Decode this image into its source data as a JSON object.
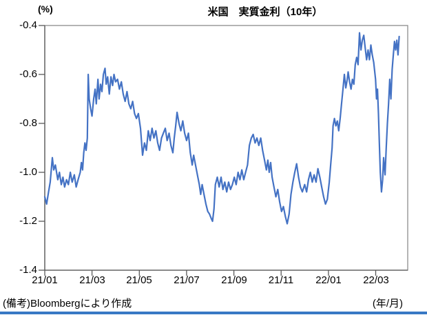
{
  "page": {
    "bottom_bar_color": "#3878C4"
  },
  "chart_data": {
    "type": "line",
    "title": "米国　実質金利（10年）",
    "y_axis_unit": "(%)",
    "x_axis_unit": "(年/月)",
    "source_note": "(備考)Bloombergにより作成",
    "y_tick_labels": [
      "-0.4",
      "-0.6",
      "-0.8",
      "-1.0",
      "-1.2",
      "-1.4"
    ],
    "x_tick_labels": [
      "21/01",
      "21/03",
      "21/05",
      "21/07",
      "21/09",
      "21/11",
      "22/01",
      "22/03"
    ],
    "ylim": [
      -1.4,
      -0.4
    ],
    "xlim_months": [
      0,
      15.36
    ],
    "x_tick_months": [
      0,
      2,
      4,
      6,
      8,
      10,
      12,
      14
    ],
    "grid": false,
    "legend_position": "none",
    "line_color": "#4472C4",
    "series": [
      {
        "name": "米国 実質金利（10年）",
        "x_unit": "months since 2021-01",
        "points": [
          [
            0.0,
            -1.1
          ],
          [
            0.08,
            -1.13
          ],
          [
            0.16,
            -1.08
          ],
          [
            0.23,
            -1.04
          ],
          [
            0.32,
            -0.94
          ],
          [
            0.38,
            -0.99
          ],
          [
            0.45,
            -0.97
          ],
          [
            0.55,
            -1.03
          ],
          [
            0.62,
            -1.0
          ],
          [
            0.7,
            -1.05
          ],
          [
            0.77,
            -1.02
          ],
          [
            0.84,
            -1.06
          ],
          [
            0.92,
            -1.03
          ],
          [
            1.0,
            -1.05
          ],
          [
            1.08,
            -1.0
          ],
          [
            1.16,
            -1.04
          ],
          [
            1.25,
            -1.01
          ],
          [
            1.33,
            -1.06
          ],
          [
            1.41,
            -1.03
          ],
          [
            1.5,
            -1.0
          ],
          [
            1.55,
            -0.96
          ],
          [
            1.6,
            -0.99
          ],
          [
            1.65,
            -0.92
          ],
          [
            1.7,
            -0.88
          ],
          [
            1.75,
            -0.91
          ],
          [
            1.8,
            -0.86
          ],
          [
            1.84,
            -0.6
          ],
          [
            1.88,
            -0.7
          ],
          [
            1.94,
            -0.74
          ],
          [
            2.0,
            -0.77
          ],
          [
            2.07,
            -0.7
          ],
          [
            2.13,
            -0.66
          ],
          [
            2.18,
            -0.72
          ],
          [
            2.25,
            -0.62
          ],
          [
            2.3,
            -0.7
          ],
          [
            2.36,
            -0.64
          ],
          [
            2.42,
            -0.67
          ],
          [
            2.48,
            -0.6
          ],
          [
            2.55,
            -0.575
          ],
          [
            2.6,
            -0.64
          ],
          [
            2.66,
            -0.61
          ],
          [
            2.73,
            -0.68
          ],
          [
            2.8,
            -0.61
          ],
          [
            2.87,
            -0.645
          ],
          [
            2.93,
            -0.6
          ],
          [
            3.0,
            -0.63
          ],
          [
            3.08,
            -0.62
          ],
          [
            3.16,
            -0.66
          ],
          [
            3.24,
            -0.63
          ],
          [
            3.32,
            -0.68
          ],
          [
            3.4,
            -0.71
          ],
          [
            3.48,
            -0.67
          ],
          [
            3.56,
            -0.72
          ],
          [
            3.64,
            -0.74
          ],
          [
            3.72,
            -0.71
          ],
          [
            3.8,
            -0.76
          ],
          [
            3.88,
            -0.78
          ],
          [
            3.96,
            -0.76
          ],
          [
            4.05,
            -0.82
          ],
          [
            4.14,
            -0.93
          ],
          [
            4.22,
            -0.88
          ],
          [
            4.3,
            -0.91
          ],
          [
            4.38,
            -0.83
          ],
          [
            4.46,
            -0.87
          ],
          [
            4.54,
            -0.82
          ],
          [
            4.62,
            -0.86
          ],
          [
            4.7,
            -0.83
          ],
          [
            4.78,
            -0.88
          ],
          [
            4.86,
            -0.91
          ],
          [
            4.94,
            -0.86
          ],
          [
            5.02,
            -0.84
          ],
          [
            5.1,
            -0.82
          ],
          [
            5.18,
            -0.87
          ],
          [
            5.26,
            -0.84
          ],
          [
            5.34,
            -0.89
          ],
          [
            5.42,
            -0.92
          ],
          [
            5.48,
            -0.86
          ],
          [
            5.54,
            -0.81
          ],
          [
            5.6,
            -0.755
          ],
          [
            5.68,
            -0.8
          ],
          [
            5.76,
            -0.83
          ],
          [
            5.84,
            -0.79
          ],
          [
            5.92,
            -0.84
          ],
          [
            6.0,
            -0.87
          ],
          [
            6.08,
            -0.84
          ],
          [
            6.16,
            -0.92
          ],
          [
            6.24,
            -0.97
          ],
          [
            6.3,
            -0.93
          ],
          [
            6.38,
            -0.97
          ],
          [
            6.46,
            -1.01
          ],
          [
            6.54,
            -1.05
          ],
          [
            6.6,
            -1.09
          ],
          [
            6.66,
            -1.05
          ],
          [
            6.74,
            -1.09
          ],
          [
            6.82,
            -1.13
          ],
          [
            6.9,
            -1.16
          ],
          [
            6.97,
            -1.17
          ],
          [
            7.05,
            -1.19
          ],
          [
            7.1,
            -1.2
          ],
          [
            7.16,
            -1.15
          ],
          [
            7.22,
            -1.05
          ],
          [
            7.3,
            -1.02
          ],
          [
            7.38,
            -1.06
          ],
          [
            7.46,
            -1.02
          ],
          [
            7.54,
            -1.07
          ],
          [
            7.62,
            -1.04
          ],
          [
            7.7,
            -1.08
          ],
          [
            7.78,
            -1.04
          ],
          [
            7.86,
            -1.07
          ],
          [
            7.94,
            -1.05
          ],
          [
            8.02,
            -1.02
          ],
          [
            8.1,
            -1.05
          ],
          [
            8.18,
            -1.0
          ],
          [
            8.26,
            -1.03
          ],
          [
            8.34,
            -0.99
          ],
          [
            8.42,
            -1.03
          ],
          [
            8.5,
            -1.0
          ],
          [
            8.58,
            -0.97
          ],
          [
            8.66,
            -0.89
          ],
          [
            8.74,
            -0.86
          ],
          [
            8.82,
            -0.845
          ],
          [
            8.9,
            -0.88
          ],
          [
            8.98,
            -0.86
          ],
          [
            9.06,
            -0.89
          ],
          [
            9.14,
            -0.86
          ],
          [
            9.22,
            -0.91
          ],
          [
            9.3,
            -0.95
          ],
          [
            9.38,
            -0.99
          ],
          [
            9.44,
            -0.95
          ],
          [
            9.5,
            -1.0
          ],
          [
            9.56,
            -0.96
          ],
          [
            9.62,
            -1.02
          ],
          [
            9.7,
            -1.06
          ],
          [
            9.78,
            -1.1
          ],
          [
            9.86,
            -1.07
          ],
          [
            9.94,
            -1.12
          ],
          [
            10.02,
            -1.16
          ],
          [
            10.1,
            -1.14
          ],
          [
            10.18,
            -1.18
          ],
          [
            10.26,
            -1.21
          ],
          [
            10.34,
            -1.17
          ],
          [
            10.42,
            -1.09
          ],
          [
            10.5,
            -1.04
          ],
          [
            10.58,
            -1.0
          ],
          [
            10.66,
            -0.965
          ],
          [
            10.74,
            -1.02
          ],
          [
            10.82,
            -1.06
          ],
          [
            10.9,
            -1.08
          ],
          [
            11.0,
            -1.05
          ],
          [
            11.08,
            -1.08
          ],
          [
            11.16,
            -1.03
          ],
          [
            11.24,
            -1.0
          ],
          [
            11.32,
            -1.04
          ],
          [
            11.4,
            -1.01
          ],
          [
            11.48,
            -1.04
          ],
          [
            11.56,
            -0.985
          ],
          [
            11.64,
            -1.02
          ],
          [
            11.72,
            -1.06
          ],
          [
            11.8,
            -1.1
          ],
          [
            11.88,
            -1.13
          ],
          [
            11.96,
            -1.11
          ],
          [
            12.04,
            -1.04
          ],
          [
            12.1,
            -0.97
          ],
          [
            12.16,
            -0.9
          ],
          [
            12.2,
            -0.81
          ],
          [
            12.26,
            -0.78
          ],
          [
            12.32,
            -0.81
          ],
          [
            12.38,
            -0.79
          ],
          [
            12.44,
            -0.83
          ],
          [
            12.5,
            -0.78
          ],
          [
            12.56,
            -0.72
          ],
          [
            12.62,
            -0.66
          ],
          [
            12.68,
            -0.6
          ],
          [
            12.74,
            -0.655
          ],
          [
            12.8,
            -0.62
          ],
          [
            12.84,
            -0.59
          ],
          [
            12.9,
            -0.63
          ],
          [
            12.96,
            -0.66
          ],
          [
            13.02,
            -0.62
          ],
          [
            13.08,
            -0.64
          ],
          [
            13.14,
            -0.56
          ],
          [
            13.2,
            -0.53
          ],
          [
            13.26,
            -0.56
          ],
          [
            13.32,
            -0.43
          ],
          [
            13.38,
            -0.5
          ],
          [
            13.44,
            -0.46
          ],
          [
            13.5,
            -0.44
          ],
          [
            13.56,
            -0.49
          ],
          [
            13.62,
            -0.54
          ],
          [
            13.68,
            -0.5
          ],
          [
            13.74,
            -0.54
          ],
          [
            13.8,
            -0.48
          ],
          [
            13.86,
            -0.52
          ],
          [
            13.92,
            -0.55
          ],
          [
            14.0,
            -0.62
          ],
          [
            14.04,
            -0.7
          ],
          [
            14.08,
            -0.66
          ],
          [
            14.12,
            -0.76
          ],
          [
            14.16,
            -0.88
          ],
          [
            14.2,
            -1.0
          ],
          [
            14.25,
            -1.08
          ],
          [
            14.3,
            -1.03
          ],
          [
            14.34,
            -0.94
          ],
          [
            14.4,
            -1.01
          ],
          [
            14.45,
            -0.9
          ],
          [
            14.5,
            -0.8
          ],
          [
            14.55,
            -0.72
          ],
          [
            14.6,
            -0.62
          ],
          [
            14.65,
            -0.7
          ],
          [
            14.7,
            -0.58
          ],
          [
            14.75,
            -0.52
          ],
          [
            14.8,
            -0.465
          ],
          [
            14.85,
            -0.5
          ],
          [
            14.9,
            -0.46
          ],
          [
            14.95,
            -0.52
          ],
          [
            15.0,
            -0.445
          ]
        ]
      }
    ]
  }
}
